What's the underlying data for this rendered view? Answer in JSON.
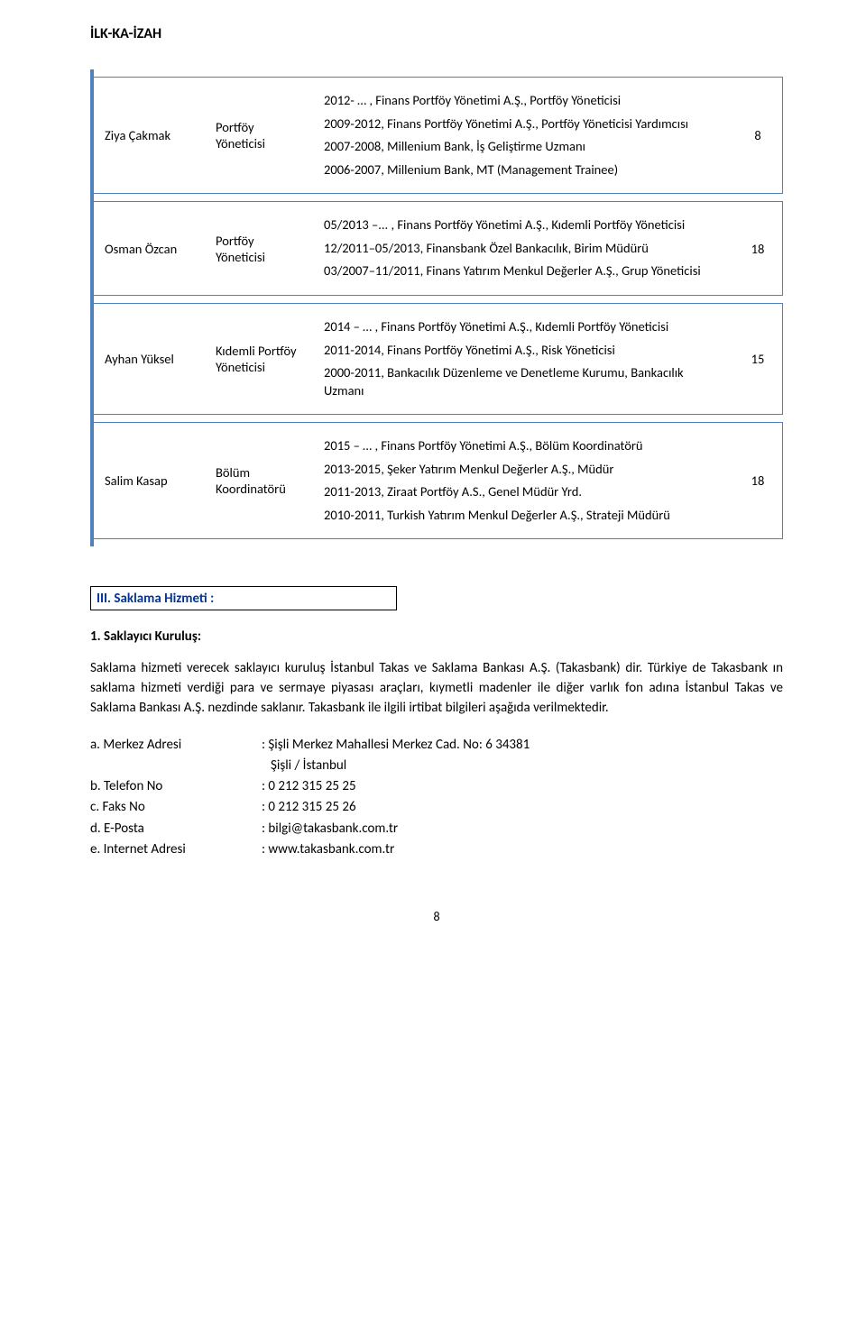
{
  "header": {
    "title": "İLK-KA-İZAH"
  },
  "personnel_table": {
    "columns_widths": [
      "125px",
      "120px",
      "auto",
      "55px"
    ],
    "rows": [
      {
        "name": "Ziya Çakmak",
        "role": "Portföy Yöneticisi",
        "desc_lines": [
          "2012- … , Finans Portföy Yönetimi A.Ş., Portföy Yöneticisi",
          "2009-2012, Finans Portföy Yönetimi A.Ş., Portföy Yöneticisi Yardımcısı",
          "2007-2008, Millenium Bank, İş Geliştirme Uzmanı",
          "2006-2007, Millenium Bank, MT (Management Trainee)"
        ],
        "number": "8"
      },
      {
        "name": "Osman Özcan",
        "role": "Portföy Yöneticisi",
        "desc_lines": [
          "05/2013 –... , Finans Portföy Yönetimi A.Ş., Kıdemli Portföy Yöneticisi",
          "12/2011–05/2013, Finansbank Özel Bankacılık, Birim Müdürü",
          "03/2007–11/2011, Finans Yatırım Menkul Değerler A.Ş., Grup Yöneticisi"
        ],
        "number": "18"
      },
      {
        "name": "Ayhan Yüksel",
        "role": "Kıdemli Portföy Yöneticisi",
        "desc_lines": [
          "2014 – … , Finans Portföy Yönetimi A.Ş., Kıdemli Portföy Yöneticisi",
          "2011-2014, Finans Portföy Yönetimi A.Ş., Risk Yöneticisi",
          "2000-2011, Bankacılık Düzenleme ve Denetleme Kurumu, Bankacılık Uzmanı"
        ],
        "number": "15"
      },
      {
        "name": "Salim Kasap",
        "role": "Bölüm Koordinatörü",
        "desc_lines": [
          "2015 – … , Finans Portföy Yönetimi A.Ş., Bölüm Koordinatörü",
          "2013-2015, Şeker Yatırım Menkul Değerler A.Ş., Müdür",
          "2011-2013, Ziraat Portföy A.S., Genel Müdür  Yrd.",
          "2010-2011, Turkish Yatırım Menkul Değerler A.Ş., Strateji Müdürü"
        ],
        "number": "18"
      }
    ]
  },
  "section3": {
    "heading": "III. Saklama Hizmeti :",
    "subhead": "1. Saklayıcı Kuruluş:",
    "paragraph": "Saklama hizmeti verecek saklayıcı kuruluş İstanbul Takas ve Saklama Bankası A.Ş. (Takasbank) dir. Türkiye de Takasbank ın saklama hizmeti verdiği para ve sermaye piyasası araçları, kıymetli madenler ile diğer varlık fon adına İstanbul Takas ve Saklama Bankası A.Ş. nezdinde saklanır. Takasbank ile ilgili irtibat bilgileri aşağıda verilmektedir."
  },
  "contacts": {
    "rows": [
      {
        "label": "a. Merkez Adresi",
        "value": ": Şişli Merkez Mahallesi Merkez Cad. No: 6 34381",
        "extra": "Şişli / İstanbul"
      },
      {
        "label": "b. Telefon No",
        "value": ": 0 212 315 25 25"
      },
      {
        "label": "c. Faks No",
        "value": ": 0 212 315 25 26"
      },
      {
        "label": "d. E-Posta",
        "value": ": bilgi@takasbank.com.tr"
      },
      {
        "label": "e. Internet Adresi",
        "value": ": www.takasbank.com.tr"
      }
    ]
  },
  "footer": {
    "page_number": "8"
  },
  "colors": {
    "accent": "#4f81bd",
    "heading_color": "#003399",
    "text": "#000000",
    "background": "#ffffff"
  }
}
